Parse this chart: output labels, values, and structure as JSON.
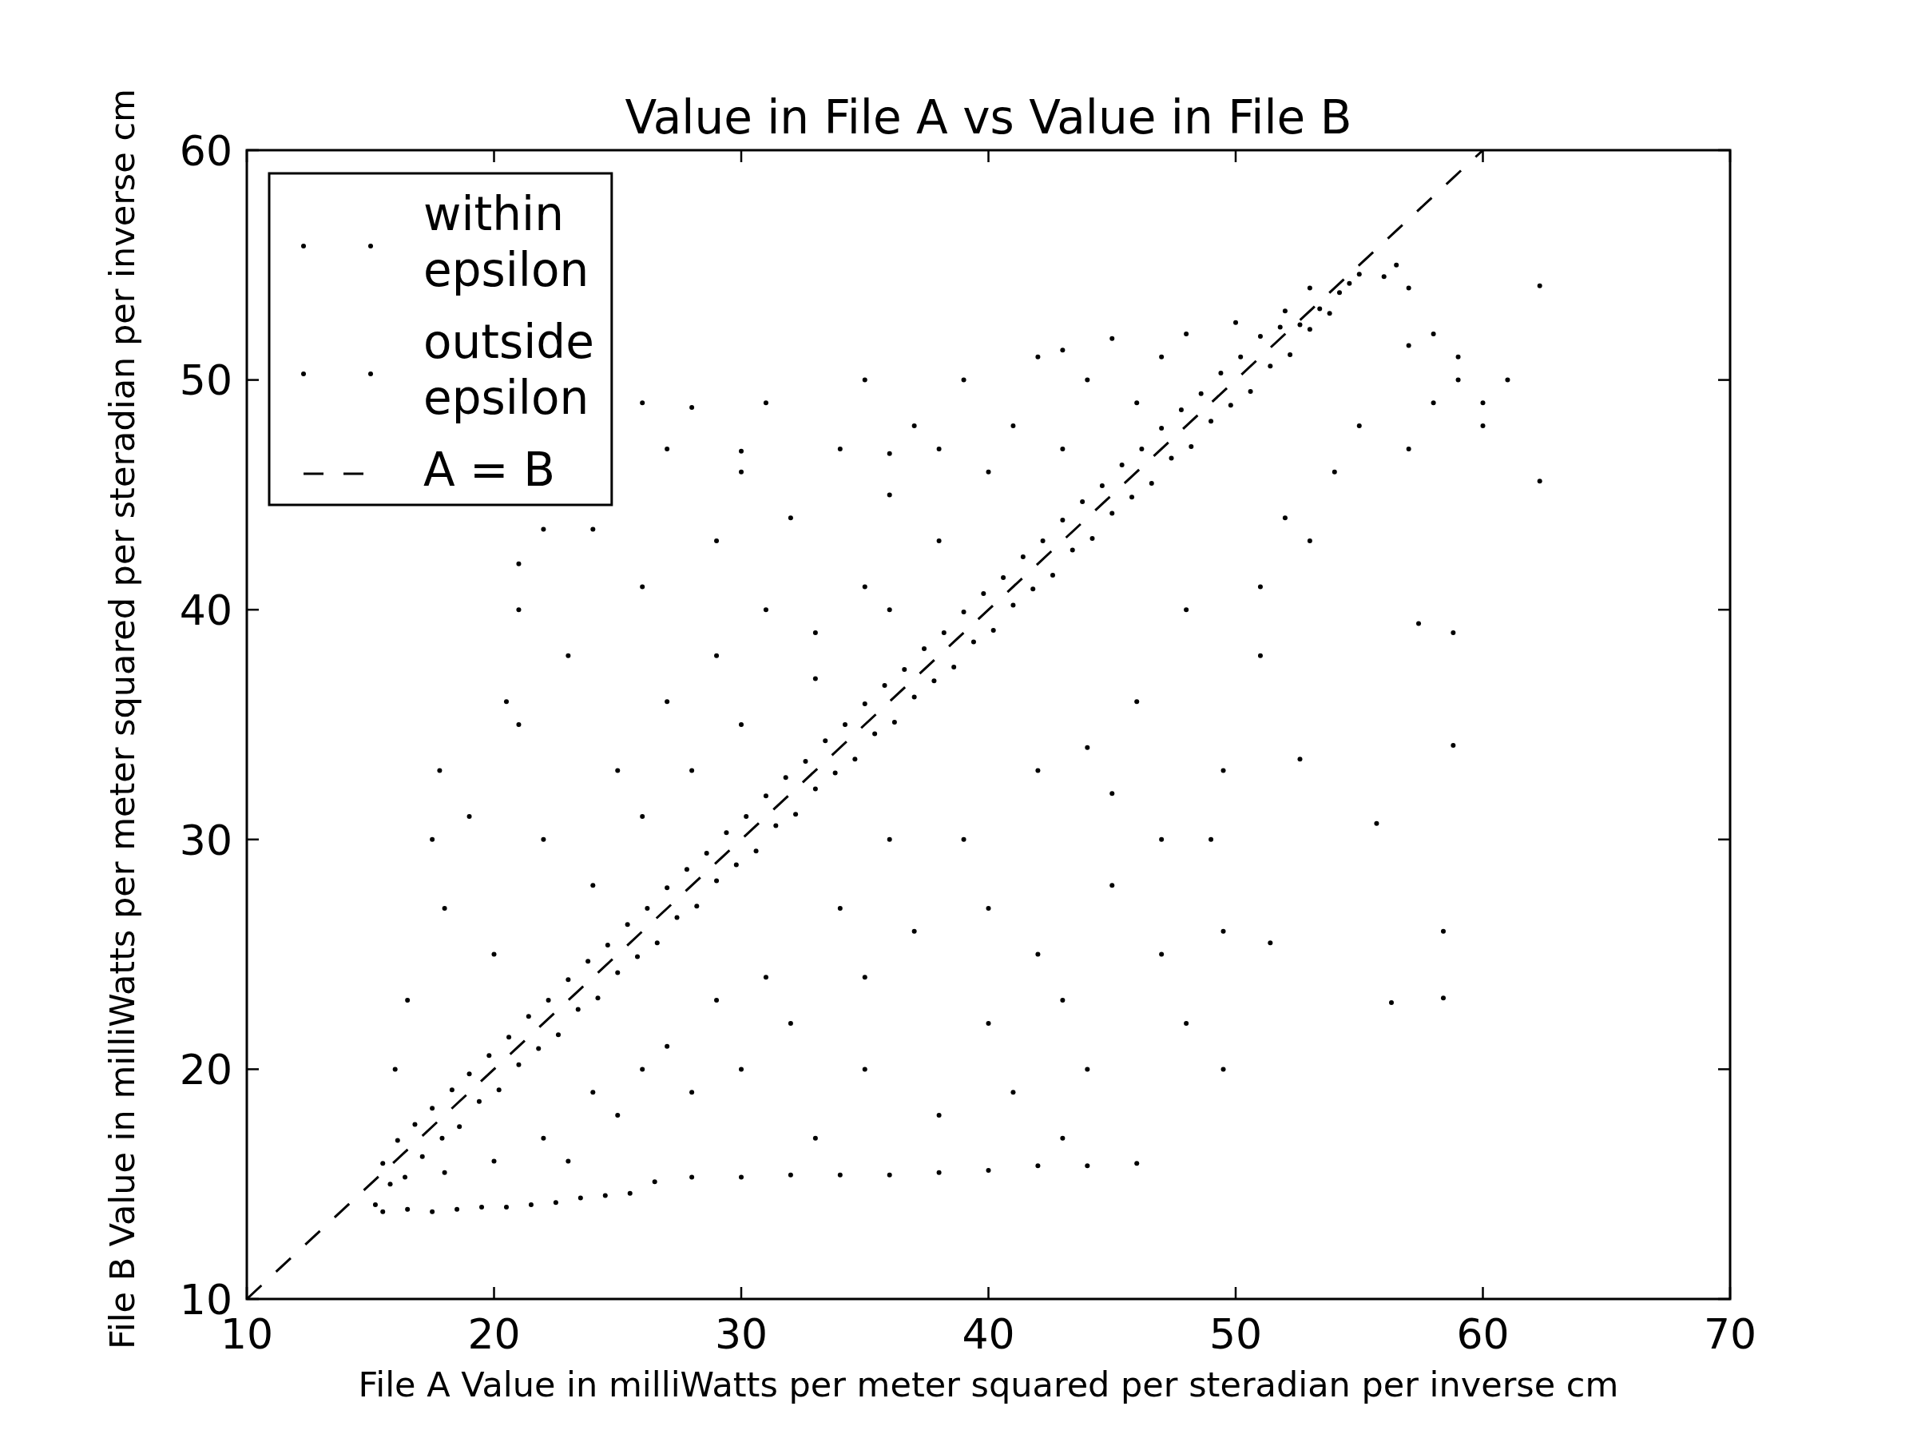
{
  "chart_data": {
    "type": "scatter",
    "title": "Value in File A vs Value in File B",
    "xlabel": "File A Value in milliWatts per meter squared per steradian per inverse cm",
    "ylabel": "File B Value in milliWatts per meter squared per steradian per inverse cm",
    "xlim": [
      10,
      70
    ],
    "ylim": [
      10,
      60
    ],
    "xticks": [
      10,
      20,
      30,
      40,
      50,
      60,
      70
    ],
    "yticks": [
      10,
      20,
      30,
      40,
      50,
      60
    ],
    "legend": "top left",
    "marker": "circle",
    "series": [
      {
        "name": "within epsilon",
        "color": "#000000",
        "x": [
          15.2,
          15.5,
          15.8,
          16.1,
          16.4,
          16.8,
          17.1,
          17.5,
          17.9,
          18.3,
          18.6,
          19.0,
          19.4,
          19.8,
          20.2,
          20.6,
          21.0,
          21.4,
          21.8,
          22.2,
          22.6,
          23.0,
          23.4,
          23.8,
          24.2,
          24.6,
          25.0,
          25.4,
          25.8,
          26.2,
          26.6,
          27.0,
          27.4,
          27.8,
          28.2,
          28.6,
          29.0,
          29.4,
          29.8,
          30.2,
          30.6,
          31.0,
          31.4,
          31.8,
          32.2,
          32.6,
          33.0,
          33.4,
          33.8,
          34.2,
          34.6,
          35.0,
          35.4,
          35.8,
          36.2,
          36.6,
          37.0,
          37.4,
          37.8,
          38.2,
          38.6,
          39.0,
          39.4,
          39.8,
          40.2,
          40.6,
          41.0,
          41.4,
          41.8,
          42.2,
          42.6,
          43.0,
          43.4,
          43.8,
          44.2,
          44.6,
          45.0,
          45.4,
          45.8,
          46.2,
          46.6,
          47.0,
          47.4,
          47.8,
          48.2,
          48.6,
          49.0,
          49.4,
          49.8,
          50.2,
          50.6,
          51.0,
          51.4,
          51.8,
          52.2,
          52.6,
          53.0,
          53.4,
          53.8,
          54.2,
          54.6,
          55.0
        ],
        "values": [
          14.1,
          15.9,
          15.0,
          16.9,
          15.3,
          17.6,
          16.2,
          18.3,
          17.0,
          19.1,
          17.5,
          19.8,
          18.6,
          20.6,
          19.1,
          21.4,
          20.2,
          22.3,
          20.9,
          23.0,
          21.5,
          23.9,
          22.6,
          24.7,
          23.1,
          25.4,
          24.2,
          26.3,
          24.9,
          27.0,
          25.5,
          27.9,
          26.6,
          28.7,
          27.1,
          29.4,
          28.2,
          30.3,
          28.9,
          31.0,
          29.5,
          31.9,
          30.6,
          32.7,
          31.1,
          33.4,
          32.2,
          34.3,
          32.9,
          35.0,
          33.5,
          35.9,
          34.6,
          36.7,
          35.1,
          37.4,
          36.2,
          38.3,
          36.9,
          39.0,
          37.5,
          39.9,
          38.6,
          40.7,
          39.1,
          41.4,
          40.2,
          42.3,
          40.9,
          43.0,
          41.5,
          43.9,
          42.6,
          44.7,
          43.1,
          45.4,
          44.2,
          46.3,
          44.9,
          47.0,
          45.5,
          47.9,
          46.6,
          48.7,
          47.1,
          49.4,
          48.2,
          50.3,
          48.9,
          51.0,
          49.5,
          51.9,
          50.6,
          52.3,
          51.1,
          52.4,
          52.2,
          53.1,
          52.9,
          53.8,
          54.2,
          54.6
        ]
      },
      {
        "name": "outside epsilon",
        "color": "#000000",
        "x": [
          15.5,
          16.5,
          17.5,
          18.5,
          19.5,
          20.5,
          21.5,
          22.5,
          23.5,
          24.5,
          25.5,
          26.5,
          28,
          30,
          32,
          34,
          36,
          38,
          40,
          42,
          44,
          46,
          22,
          25,
          28,
          30,
          32,
          35,
          38,
          40,
          42,
          44,
          45,
          47,
          48,
          49,
          49.5,
          49.5,
          49.5,
          43,
          41,
          37,
          34,
          31,
          27,
          24,
          20,
          18,
          33,
          39,
          42,
          46,
          48,
          51,
          52,
          54,
          55,
          57,
          58,
          59,
          60,
          61,
          57,
          58,
          59,
          60,
          53,
          51,
          44,
          36,
          29,
          26,
          23,
          35,
          40,
          45,
          47,
          43,
          51.4,
          55.7,
          57.4,
          58.8,
          58.8,
          58.4,
          56.3,
          58.4,
          52.6,
          62.3,
          62.3,
          16,
          16.5,
          17.5,
          17.8,
          18,
          20.5,
          19,
          21,
          20,
          21,
          21,
          22,
          22,
          23,
          24,
          26,
          25,
          26,
          27,
          27,
          28,
          29,
          29,
          30,
          31,
          31,
          32,
          33,
          34,
          35,
          35,
          36,
          37,
          38,
          39,
          40,
          41,
          42,
          43,
          44,
          45,
          46,
          47,
          48,
          50,
          52,
          53,
          56.5,
          56,
          57,
          24,
          26,
          28,
          30,
          33,
          36,
          38,
          43,
          30,
          36
        ],
        "values": [
          13.8,
          13.9,
          13.8,
          13.9,
          14.0,
          14.0,
          14.1,
          14.2,
          14.4,
          14.5,
          14.6,
          15.1,
          15.3,
          15.3,
          15.4,
          15.4,
          15.4,
          15.5,
          15.6,
          15.8,
          15.8,
          15.9,
          17,
          18,
          19,
          20,
          22,
          20,
          18,
          22,
          25,
          20,
          28,
          25,
          22,
          30,
          33,
          20,
          26,
          17,
          19,
          26,
          27,
          24,
          21,
          19,
          16,
          15.5,
          17,
          30,
          33,
          36,
          40,
          41,
          44,
          46,
          48,
          47,
          49,
          50,
          49,
          50,
          51.5,
          52,
          51,
          48,
          43,
          38,
          34,
          30,
          23,
          20,
          16,
          24,
          27,
          32,
          30,
          23,
          25.5,
          30.7,
          39.4,
          39.0,
          34.1,
          26.0,
          22.9,
          23.1,
          33.5,
          54.1,
          45.6,
          20,
          23,
          30,
          33,
          27,
          36,
          31,
          40,
          25,
          42,
          35,
          43.5,
          30,
          38,
          43.5,
          49,
          33,
          41,
          47,
          36,
          48.8,
          43,
          38,
          46,
          49,
          40,
          44,
          37,
          47,
          50,
          41,
          45,
          48,
          43,
          50,
          46,
          48,
          51,
          47,
          50,
          51.8,
          49,
          51,
          52,
          52.5,
          53,
          54,
          55,
          54.5,
          54,
          28,
          31,
          33,
          35,
          39,
          40,
          47,
          51.3,
          46.9,
          46.8
        ]
      },
      {
        "name": "A = B",
        "type": "line",
        "color": "#000000",
        "line_style": "dashed",
        "marker": "none",
        "x": [
          10,
          60
        ],
        "values": [
          10,
          60
        ]
      }
    ]
  }
}
